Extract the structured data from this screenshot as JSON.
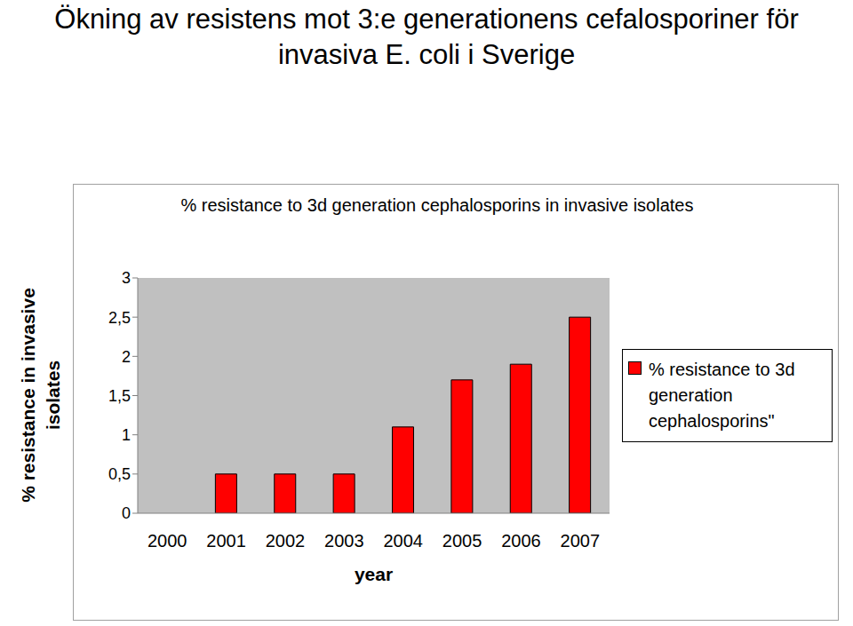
{
  "chart_data": {
    "type": "bar",
    "title": "Ökning av resistens mot 3:e generationens cefalosporiner för invasiva E. coli i Sverige",
    "subtitle": "% resistance to 3d generation cephalosporins in invasive isolates",
    "x_label": "year",
    "y_label": "% resistance in invasive isolates",
    "categories": [
      "2000",
      "2001",
      "2002",
      "2003",
      "2004",
      "2005",
      "2006",
      "2007"
    ],
    "series": [
      {
        "name": "% resistance to 3d generation cephalosporins\"",
        "color": "#ff0000",
        "values": [
          0,
          0.5,
          0.5,
          0.5,
          1.1,
          1.7,
          1.9,
          2.5
        ]
      }
    ],
    "ylim": [
      0,
      3
    ],
    "yticks": [
      0,
      {
        "value": 0.5,
        "label": "0,5"
      },
      1,
      {
        "value": 1.5,
        "label": "1,5"
      },
      2,
      {
        "value": 2.5,
        "label": "2,5"
      },
      3
    ],
    "grid": false,
    "legend": "right"
  }
}
